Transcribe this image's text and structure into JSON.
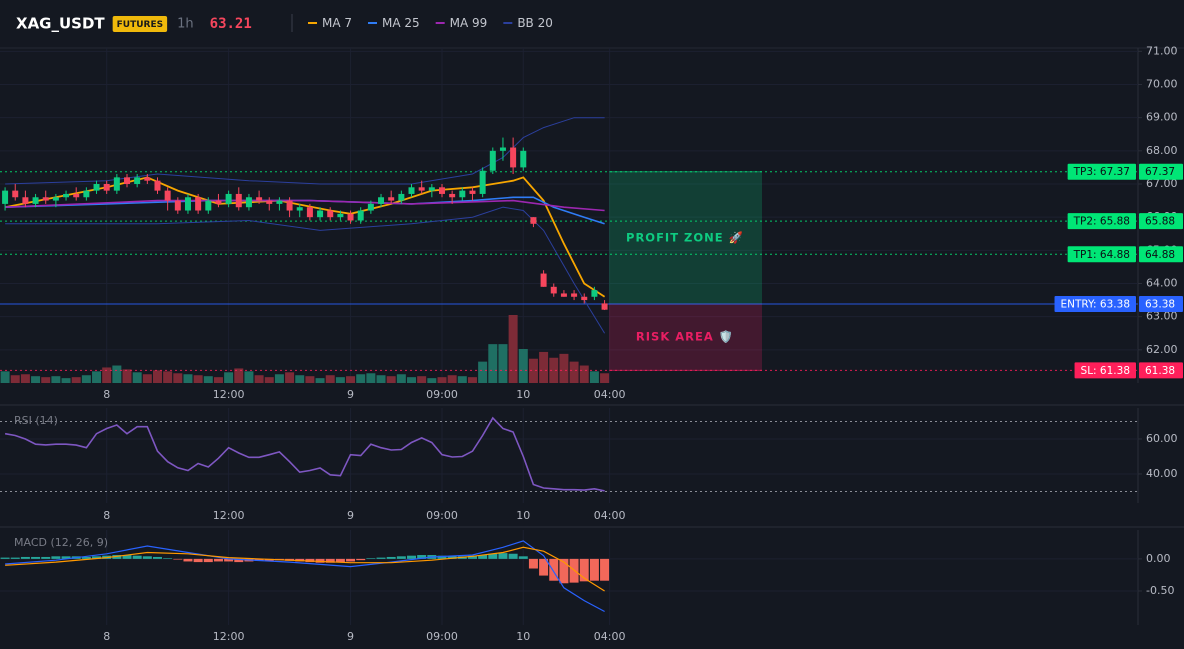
{
  "header": {
    "symbol": "XAG_USDT",
    "badge": "FUTURES",
    "interval": "1h",
    "price": 63.21
  },
  "chart_data": [
    {
      "type": "candlestick",
      "grid": true,
      "x": [
        0,
        1,
        2,
        3,
        4,
        5,
        6,
        7,
        8,
        9,
        10,
        11,
        12,
        13,
        14,
        15,
        16,
        17,
        18,
        19,
        20,
        21,
        22,
        23,
        24,
        25,
        26,
        27,
        28,
        29,
        30,
        31,
        32,
        33,
        34,
        35,
        36,
        37,
        38,
        39,
        40,
        41,
        42,
        43,
        44,
        45,
        46,
        47,
        48,
        49,
        50,
        51,
        52,
        53,
        54,
        55,
        56,
        57,
        58,
        59
      ],
      "open": [
        66.4,
        66.8,
        66.6,
        66.4,
        66.6,
        66.5,
        66.6,
        66.7,
        66.6,
        66.8,
        67.0,
        66.8,
        67.2,
        67.0,
        67.2,
        67.1,
        66.8,
        66.5,
        66.2,
        66.6,
        66.2,
        66.5,
        66.4,
        66.7,
        66.3,
        66.6,
        66.5,
        66.4,
        66.5,
        66.2,
        66.3,
        66.0,
        66.2,
        66.0,
        66.1,
        65.9,
        66.2,
        66.4,
        66.6,
        66.5,
        66.7,
        66.9,
        66.8,
        66.9,
        66.7,
        66.6,
        66.8,
        66.7,
        67.4,
        68.0,
        68.1,
        67.5,
        66.0,
        64.3,
        63.9,
        63.7,
        63.7,
        63.6,
        63.6,
        63.4
      ],
      "high": [
        66.9,
        67.0,
        66.8,
        66.7,
        66.8,
        66.7,
        66.8,
        66.9,
        66.9,
        67.1,
        67.1,
        67.3,
        67.3,
        67.3,
        67.3,
        67.2,
        66.9,
        66.6,
        66.7,
        66.7,
        66.6,
        66.7,
        66.8,
        66.9,
        66.7,
        66.8,
        66.6,
        66.6,
        66.6,
        66.4,
        66.4,
        66.3,
        66.3,
        66.2,
        66.2,
        66.3,
        66.5,
        66.7,
        66.8,
        66.8,
        67.0,
        67.1,
        67.0,
        67.0,
        66.8,
        66.9,
        66.9,
        67.5,
        68.1,
        68.4,
        68.4,
        68.1,
        66.0,
        64.4,
        64.0,
        63.8,
        63.8,
        63.7,
        63.9,
        63.5
      ],
      "low": [
        66.2,
        66.5,
        66.3,
        66.3,
        66.4,
        66.3,
        66.5,
        66.5,
        66.5,
        66.7,
        66.7,
        66.7,
        66.9,
        66.9,
        67.0,
        66.7,
        66.2,
        66.1,
        66.1,
        66.1,
        66.1,
        66.3,
        66.3,
        66.2,
        66.2,
        66.4,
        66.2,
        66.2,
        66.0,
        66.0,
        65.9,
        65.9,
        65.9,
        65.9,
        65.8,
        65.8,
        66.1,
        66.3,
        66.4,
        66.4,
        66.6,
        66.7,
        66.6,
        66.6,
        66.4,
        66.5,
        66.5,
        66.6,
        67.3,
        67.7,
        67.3,
        67.4,
        65.7,
        63.9,
        63.6,
        63.6,
        63.5,
        63.4,
        63.5,
        63.2
      ],
      "close": [
        66.8,
        66.6,
        66.4,
        66.6,
        66.5,
        66.6,
        66.7,
        66.6,
        66.8,
        67.0,
        66.8,
        67.2,
        67.0,
        67.2,
        67.1,
        66.8,
        66.5,
        66.2,
        66.6,
        66.2,
        66.5,
        66.4,
        66.7,
        66.3,
        66.6,
        66.5,
        66.4,
        66.5,
        66.2,
        66.3,
        66.0,
        66.2,
        66.0,
        66.1,
        65.9,
        66.2,
        66.4,
        66.6,
        66.5,
        66.7,
        66.9,
        66.8,
        66.9,
        66.7,
        66.6,
        66.8,
        66.7,
        67.4,
        68.0,
        68.1,
        67.5,
        68.0,
        65.8,
        63.9,
        63.7,
        63.6,
        63.6,
        63.5,
        63.8,
        63.21
      ],
      "volume": [
        12,
        8,
        9,
        7,
        6,
        7,
        5,
        6,
        8,
        12,
        16,
        18,
        14,
        11,
        9,
        13,
        12,
        10,
        9,
        8,
        7,
        6,
        11,
        15,
        12,
        8,
        6,
        9,
        11,
        8,
        7,
        5,
        8,
        6,
        7,
        9,
        10,
        8,
        7,
        9,
        6,
        7,
        5,
        6,
        8,
        7,
        6,
        22,
        40,
        40,
        70,
        35,
        25,
        32,
        26,
        30,
        22,
        18,
        12,
        10
      ],
      "up_color": "#0ecb81",
      "down_color": "#f6465d",
      "volume_up_color": "#1f6f63",
      "volume_down_color": "#7d2b37",
      "series": [
        {
          "name": "MA 7",
          "color": "#f7a600",
          "x": [
            0,
            5,
            10,
            14,
            17,
            21,
            27,
            32,
            34,
            38,
            42,
            46,
            50,
            51,
            53,
            55,
            57,
            59
          ],
          "values": [
            66.3,
            66.6,
            66.9,
            67.2,
            66.8,
            66.4,
            66.5,
            66.2,
            66.1,
            66.4,
            66.8,
            66.9,
            67.1,
            67.2,
            66.5,
            65.2,
            64.0,
            63.6
          ]
        },
        {
          "name": "MA 25",
          "color": "#2f7cf6",
          "x": [
            0,
            10,
            20,
            30,
            40,
            46,
            50,
            52,
            54,
            57,
            59
          ],
          "values": [
            66.3,
            66.4,
            66.5,
            66.5,
            66.4,
            66.5,
            66.6,
            66.6,
            66.3,
            66.0,
            65.8
          ]
        },
        {
          "name": "MA 99",
          "color": "#9c27b0",
          "x": [
            0,
            15,
            30,
            40,
            50,
            55,
            59
          ],
          "values": [
            66.3,
            66.5,
            66.5,
            66.4,
            66.5,
            66.3,
            66.2
          ]
        },
        {
          "name": "BB 20",
          "color": "#2b3f9c",
          "x": [
            0,
            10,
            15,
            24,
            31,
            40,
            46,
            49,
            51,
            53,
            56,
            59
          ],
          "upper": [
            67.0,
            67.1,
            67.3,
            67.1,
            67.0,
            67.0,
            67.3,
            67.8,
            68.4,
            68.7,
            69.0,
            69.0
          ],
          "lower": [
            65.8,
            65.8,
            65.8,
            65.9,
            65.6,
            65.8,
            66.0,
            66.3,
            66.2,
            65.6,
            64.0,
            62.5
          ]
        }
      ],
      "levels": [
        {
          "label": "TP3: 67.37",
          "value": 67.37,
          "color": "#00e676",
          "style": "dotted"
        },
        {
          "label": "TP2: 65.88",
          "value": 65.88,
          "color": "#00e676",
          "style": "dotted"
        },
        {
          "label": "TP1: 64.88",
          "value": 64.88,
          "color": "#00e676",
          "style": "dotted"
        },
        {
          "label": "ENTRY: 63.38",
          "value": 63.38,
          "color": "#2962ff",
          "style": "solid"
        },
        {
          "label": "SL: 61.38",
          "value": 61.38,
          "color": "#ff1f5a",
          "style": "dotted"
        }
      ],
      "zones": [
        {
          "label": "PROFIT ZONE 🚀",
          "from": 63.38,
          "to": 67.37,
          "color": "#0ecb81"
        },
        {
          "label": "RISK AREA 🛡️",
          "from": 61.38,
          "to": 63.38,
          "color": "#e91e63"
        }
      ],
      "xlim": [
        -0.5,
        111.5
      ],
      "xticks": [
        {
          "value": 10,
          "label": "8"
        },
        {
          "value": 22,
          "label": "12:00"
        },
        {
          "value": 34,
          "label": "9"
        },
        {
          "value": 43,
          "label": "09:00"
        },
        {
          "value": 51,
          "label": "10"
        },
        {
          "value": 59.5,
          "label": "04:00"
        }
      ],
      "ylim": [
        61.0,
        71.1
      ],
      "yticks": [
        {
          "value": 62,
          "label": "62.00"
        },
        {
          "value": 63,
          "label": "63.00"
        },
        {
          "value": 64,
          "label": "64.00"
        },
        {
          "value": 65,
          "label": "65.00"
        },
        {
          "value": 66,
          "label": "66.00"
        },
        {
          "value": 67,
          "label": "67.00"
        },
        {
          "value": 68,
          "label": "68.00"
        },
        {
          "value": 69,
          "label": "69.00"
        },
        {
          "value": 70,
          "label": "70.00"
        },
        {
          "value": 71,
          "label": "71.00"
        }
      ]
    },
    {
      "type": "line",
      "title": "RSI (14)",
      "grid": true,
      "color": "#7e57c2",
      "guides": [
        70,
        30
      ],
      "x": [
        0,
        1,
        2,
        3,
        4,
        5,
        6,
        7,
        8,
        9,
        10,
        11,
        12,
        13,
        14,
        15,
        16,
        17,
        18,
        19,
        20,
        21,
        22,
        23,
        24,
        25,
        26,
        27,
        28,
        29,
        30,
        31,
        32,
        33,
        34,
        35,
        36,
        37,
        38,
        39,
        40,
        41,
        42,
        43,
        44,
        45,
        46,
        47,
        48,
        49,
        50,
        51,
        52,
        53,
        54,
        55,
        56,
        57,
        58,
        59
      ],
      "values": [
        63,
        62,
        60,
        57,
        56.6,
        57,
        57,
        56.5,
        55,
        63,
        66,
        68,
        63,
        67,
        67,
        53,
        47,
        43.5,
        42,
        46,
        44,
        49,
        55,
        52,
        49.5,
        49.5,
        51,
        52.6,
        47,
        41,
        42,
        43.4,
        39.5,
        39,
        51,
        50.5,
        57,
        55,
        53.7,
        54,
        58,
        60.6,
        58,
        51,
        49.7,
        50,
        53,
        62,
        72,
        66,
        64,
        50,
        34,
        32,
        31.5,
        31,
        31,
        30.8,
        31.5,
        30.3
      ],
      "xlim": [
        -0.5,
        111.5
      ],
      "xticks": [
        {
          "value": 10,
          "label": "8"
        },
        {
          "value": 22,
          "label": "12:00"
        },
        {
          "value": 34,
          "label": "9"
        },
        {
          "value": 43,
          "label": "09:00"
        },
        {
          "value": 51,
          "label": "10"
        },
        {
          "value": 59.5,
          "label": "04:00"
        }
      ],
      "ylim": [
        23.4,
        77.7
      ],
      "yticks": [
        {
          "value": 40,
          "label": "40.00"
        },
        {
          "value": 60,
          "label": "60.00"
        }
      ]
    },
    {
      "type": "macd",
      "title": "MACD (12, 26, 9)",
      "grid": true,
      "up_color": "#26a69a",
      "down_color": "#f2685a",
      "x": [
        0,
        1,
        2,
        3,
        4,
        5,
        6,
        7,
        8,
        9,
        10,
        11,
        12,
        13,
        14,
        15,
        16,
        17,
        18,
        19,
        20,
        21,
        22,
        23,
        24,
        25,
        26,
        27,
        28,
        29,
        30,
        31,
        32,
        33,
        34,
        35,
        36,
        37,
        38,
        39,
        40,
        41,
        42,
        43,
        44,
        45,
        46,
        47,
        48,
        49,
        50,
        51,
        52,
        53,
        54,
        55,
        56,
        57,
        58,
        59
      ],
      "histogram": [
        0.02,
        0.02,
        0.03,
        0.03,
        0.03,
        0.04,
        0.04,
        0.04,
        0.03,
        0.04,
        0.05,
        0.06,
        0.06,
        0.05,
        0.04,
        0.03,
        0.01,
        -0.01,
        -0.04,
        -0.05,
        -0.05,
        -0.04,
        -0.04,
        -0.05,
        -0.04,
        -0.03,
        -0.03,
        -0.02,
        -0.03,
        -0.04,
        -0.05,
        -0.06,
        -0.06,
        -0.05,
        -0.04,
        -0.02,
        0.01,
        0.02,
        0.03,
        0.04,
        0.05,
        0.06,
        0.06,
        0.05,
        0.04,
        0.04,
        0.05,
        0.06,
        0.08,
        0.09,
        0.08,
        0.04,
        -0.15,
        -0.26,
        -0.34,
        -0.38,
        -0.37,
        -0.35,
        -0.34,
        -0.34
      ],
      "series": [
        {
          "color": "#2962ff",
          "x": [
            0,
            5,
            10,
            14,
            18,
            22,
            28,
            34,
            38,
            42,
            46,
            49,
            51,
            53,
            55,
            57,
            59
          ],
          "values": [
            -0.08,
            -0.02,
            0.08,
            0.2,
            0.1,
            0.0,
            -0.05,
            -0.12,
            -0.05,
            0.03,
            0.06,
            0.18,
            0.28,
            0.05,
            -0.45,
            -0.65,
            -0.82
          ]
        },
        {
          "color": "#ff9800",
          "x": [
            0,
            5,
            10,
            14,
            18,
            22,
            28,
            34,
            38,
            42,
            46,
            49,
            51,
            53,
            55,
            57,
            59
          ],
          "values": [
            -0.1,
            -0.05,
            0.02,
            0.1,
            0.08,
            0.02,
            -0.02,
            -0.06,
            -0.06,
            -0.02,
            0.04,
            0.1,
            0.18,
            0.12,
            -0.05,
            -0.3,
            -0.5
          ]
        }
      ],
      "xlim": [
        -0.5,
        111.5
      ],
      "xticks": [
        {
          "value": 10,
          "label": "8"
        },
        {
          "value": 22,
          "label": "12:00"
        },
        {
          "value": 34,
          "label": "9"
        },
        {
          "value": 43,
          "label": "09:00"
        },
        {
          "value": 51,
          "label": "10"
        },
        {
          "value": 59.5,
          "label": "04:00"
        }
      ],
      "ylim": [
        -1.03,
        0.45
      ],
      "yticks": [
        {
          "value": -0.5,
          "label": "-0.50"
        },
        {
          "value": 0,
          "label": "0.00"
        }
      ]
    }
  ]
}
